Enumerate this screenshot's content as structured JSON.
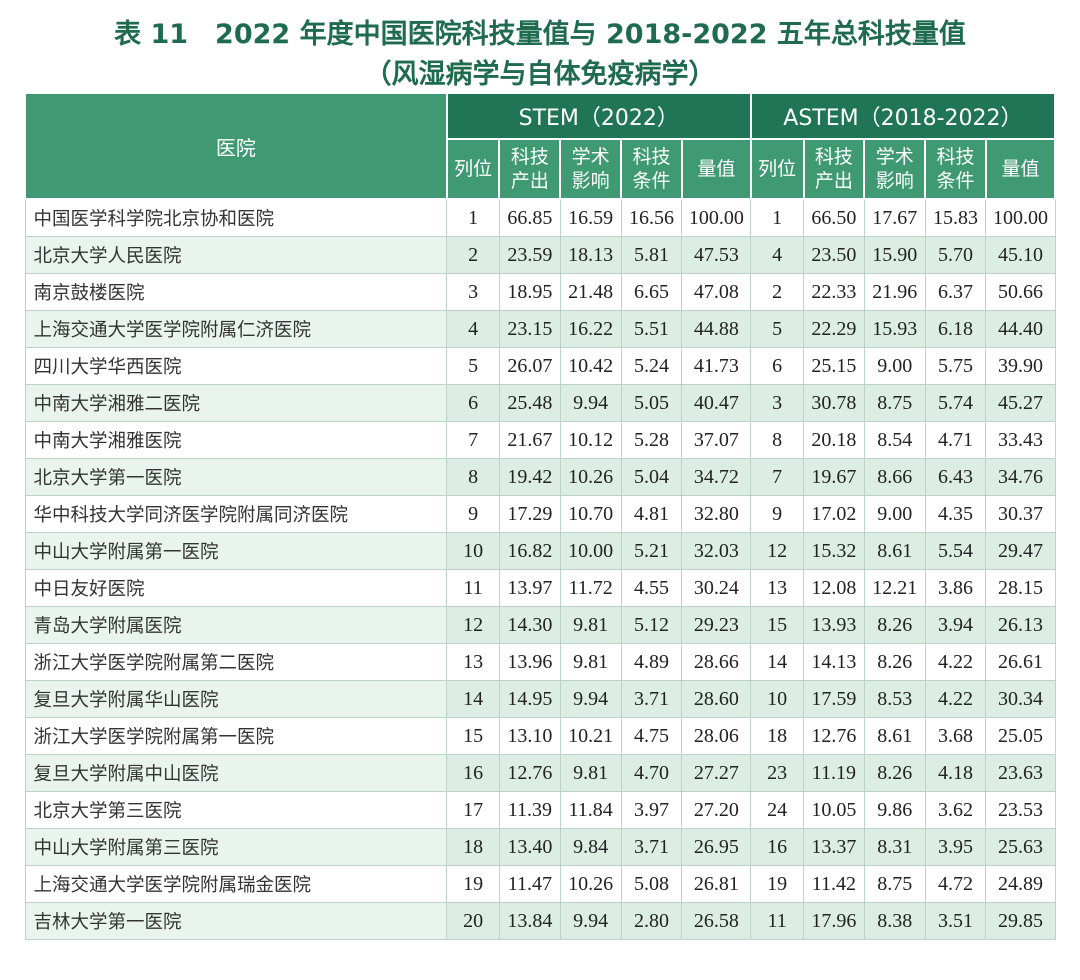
{
  "title_line1": "表 11　2022 年度中国医院科技量值与 2018-2022 五年总科技量值",
  "title_line2": "（风湿病学与自体免疫病学）",
  "header": {
    "hospital": "医院",
    "stem_group": "STEM（2022）",
    "astem_group": "ASTEM（2018-2022）",
    "rank": "列位",
    "output": [
      "科技",
      "产出"
    ],
    "influence": [
      "学术",
      "影响"
    ],
    "condition": [
      "科技",
      "条件"
    ],
    "value": "量值"
  },
  "rows": [
    {
      "name": "中国医学科学院北京协和医院",
      "s_rank": "1",
      "s_out": "66.85",
      "s_inf": "16.59",
      "s_cond": "16.56",
      "s_val": "100.00",
      "a_rank": "1",
      "a_out": "66.50",
      "a_inf": "17.67",
      "a_cond": "15.83",
      "a_val": "100.00"
    },
    {
      "name": "北京大学人民医院",
      "s_rank": "2",
      "s_out": "23.59",
      "s_inf": "18.13",
      "s_cond": "5.81",
      "s_val": "47.53",
      "a_rank": "4",
      "a_out": "23.50",
      "a_inf": "15.90",
      "a_cond": "5.70",
      "a_val": "45.10"
    },
    {
      "name": "南京鼓楼医院",
      "s_rank": "3",
      "s_out": "18.95",
      "s_inf": "21.48",
      "s_cond": "6.65",
      "s_val": "47.08",
      "a_rank": "2",
      "a_out": "22.33",
      "a_inf": "21.96",
      "a_cond": "6.37",
      "a_val": "50.66"
    },
    {
      "name": "上海交通大学医学院附属仁济医院",
      "s_rank": "4",
      "s_out": "23.15",
      "s_inf": "16.22",
      "s_cond": "5.51",
      "s_val": "44.88",
      "a_rank": "5",
      "a_out": "22.29",
      "a_inf": "15.93",
      "a_cond": "6.18",
      "a_val": "44.40"
    },
    {
      "name": "四川大学华西医院",
      "s_rank": "5",
      "s_out": "26.07",
      "s_inf": "10.42",
      "s_cond": "5.24",
      "s_val": "41.73",
      "a_rank": "6",
      "a_out": "25.15",
      "a_inf": "9.00",
      "a_cond": "5.75",
      "a_val": "39.90"
    },
    {
      "name": "中南大学湘雅二医院",
      "s_rank": "6",
      "s_out": "25.48",
      "s_inf": "9.94",
      "s_cond": "5.05",
      "s_val": "40.47",
      "a_rank": "3",
      "a_out": "30.78",
      "a_inf": "8.75",
      "a_cond": "5.74",
      "a_val": "45.27"
    },
    {
      "name": "中南大学湘雅医院",
      "s_rank": "7",
      "s_out": "21.67",
      "s_inf": "10.12",
      "s_cond": "5.28",
      "s_val": "37.07",
      "a_rank": "8",
      "a_out": "20.18",
      "a_inf": "8.54",
      "a_cond": "4.71",
      "a_val": "33.43"
    },
    {
      "name": "北京大学第一医院",
      "s_rank": "8",
      "s_out": "19.42",
      "s_inf": "10.26",
      "s_cond": "5.04",
      "s_val": "34.72",
      "a_rank": "7",
      "a_out": "19.67",
      "a_inf": "8.66",
      "a_cond": "6.43",
      "a_val": "34.76"
    },
    {
      "name": "华中科技大学同济医学院附属同济医院",
      "s_rank": "9",
      "s_out": "17.29",
      "s_inf": "10.70",
      "s_cond": "4.81",
      "s_val": "32.80",
      "a_rank": "9",
      "a_out": "17.02",
      "a_inf": "9.00",
      "a_cond": "4.35",
      "a_val": "30.37"
    },
    {
      "name": "中山大学附属第一医院",
      "s_rank": "10",
      "s_out": "16.82",
      "s_inf": "10.00",
      "s_cond": "5.21",
      "s_val": "32.03",
      "a_rank": "12",
      "a_out": "15.32",
      "a_inf": "8.61",
      "a_cond": "5.54",
      "a_val": "29.47"
    },
    {
      "name": "中日友好医院",
      "s_rank": "11",
      "s_out": "13.97",
      "s_inf": "11.72",
      "s_cond": "4.55",
      "s_val": "30.24",
      "a_rank": "13",
      "a_out": "12.08",
      "a_inf": "12.21",
      "a_cond": "3.86",
      "a_val": "28.15"
    },
    {
      "name": "青岛大学附属医院",
      "s_rank": "12",
      "s_out": "14.30",
      "s_inf": "9.81",
      "s_cond": "5.12",
      "s_val": "29.23",
      "a_rank": "15",
      "a_out": "13.93",
      "a_inf": "8.26",
      "a_cond": "3.94",
      "a_val": "26.13"
    },
    {
      "name": "浙江大学医学院附属第二医院",
      "s_rank": "13",
      "s_out": "13.96",
      "s_inf": "9.81",
      "s_cond": "4.89",
      "s_val": "28.66",
      "a_rank": "14",
      "a_out": "14.13",
      "a_inf": "8.26",
      "a_cond": "4.22",
      "a_val": "26.61"
    },
    {
      "name": "复旦大学附属华山医院",
      "s_rank": "14",
      "s_out": "14.95",
      "s_inf": "9.94",
      "s_cond": "3.71",
      "s_val": "28.60",
      "a_rank": "10",
      "a_out": "17.59",
      "a_inf": "8.53",
      "a_cond": "4.22",
      "a_val": "30.34"
    },
    {
      "name": "浙江大学医学院附属第一医院",
      "s_rank": "15",
      "s_out": "13.10",
      "s_inf": "10.21",
      "s_cond": "4.75",
      "s_val": "28.06",
      "a_rank": "18",
      "a_out": "12.76",
      "a_inf": "8.61",
      "a_cond": "3.68",
      "a_val": "25.05"
    },
    {
      "name": "复旦大学附属中山医院",
      "s_rank": "16",
      "s_out": "12.76",
      "s_inf": "9.81",
      "s_cond": "4.70",
      "s_val": "27.27",
      "a_rank": "23",
      "a_out": "11.19",
      "a_inf": "8.26",
      "a_cond": "4.18",
      "a_val": "23.63"
    },
    {
      "name": "北京大学第三医院",
      "s_rank": "17",
      "s_out": "11.39",
      "s_inf": "11.84",
      "s_cond": "3.97",
      "s_val": "27.20",
      "a_rank": "24",
      "a_out": "10.05",
      "a_inf": "9.86",
      "a_cond": "3.62",
      "a_val": "23.53"
    },
    {
      "name": "中山大学附属第三医院",
      "s_rank": "18",
      "s_out": "13.40",
      "s_inf": "9.84",
      "s_cond": "3.71",
      "s_val": "26.95",
      "a_rank": "16",
      "a_out": "13.37",
      "a_inf": "8.31",
      "a_cond": "3.95",
      "a_val": "25.63"
    },
    {
      "name": "上海交通大学医学院附属瑞金医院",
      "s_rank": "19",
      "s_out": "11.47",
      "s_inf": "10.26",
      "s_cond": "5.08",
      "s_val": "26.81",
      "a_rank": "19",
      "a_out": "11.42",
      "a_inf": "8.75",
      "a_cond": "4.72",
      "a_val": "24.89"
    },
    {
      "name": "吉林大学第一医院",
      "s_rank": "20",
      "s_out": "13.84",
      "s_inf": "9.94",
      "s_cond": "2.80",
      "s_val": "26.58",
      "a_rank": "11",
      "a_out": "17.96",
      "a_inf": "8.38",
      "a_cond": "3.51",
      "a_val": "29.85"
    }
  ],
  "colors": {
    "title": "#1f6b4f",
    "header": "#3f9a73",
    "header_group": "#1f7555",
    "stripe": "#dceee4"
  }
}
